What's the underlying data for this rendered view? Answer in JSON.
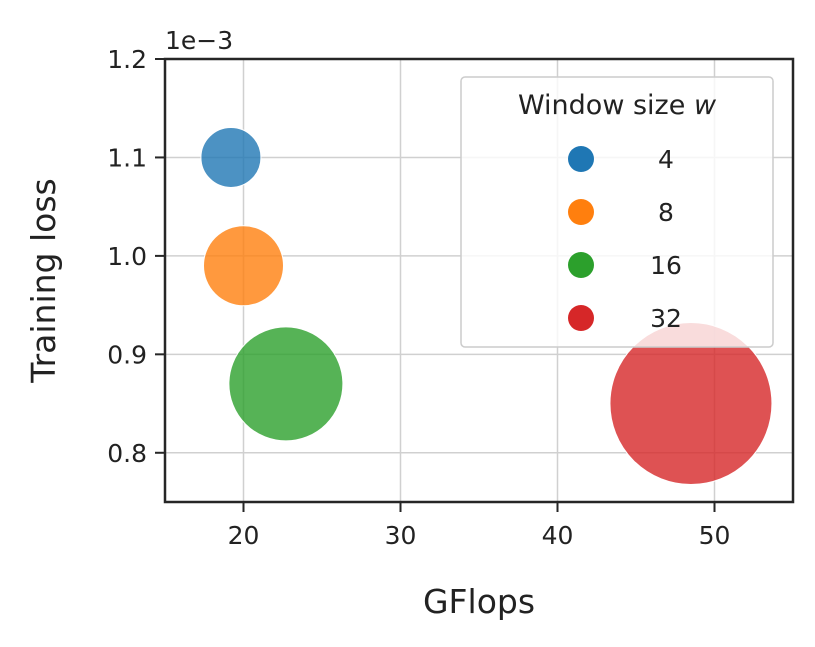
{
  "chart_data": {
    "type": "scatter",
    "xlabel": "GFlops",
    "ylabel": "Training loss",
    "y_offset_label": "1e−3",
    "xlim": [
      15,
      55
    ],
    "ylim": [
      0.75,
      1.2
    ],
    "xticks": [
      20,
      30,
      40,
      50
    ],
    "xtick_labels": [
      "20",
      "30",
      "40",
      "50"
    ],
    "yticks": [
      0.8,
      0.9,
      1.0,
      1.1,
      1.2
    ],
    "ytick_labels": [
      "0.8",
      "0.9",
      "1.0",
      "1.1",
      "1.2"
    ],
    "grid": true,
    "legend": {
      "title_text": "Window size ",
      "title_var": "w",
      "placement": "top-right",
      "entries": [
        {
          "label": "4",
          "color": "#1f77b4"
        },
        {
          "label": "8",
          "color": "#ff7f0e"
        },
        {
          "label": "16",
          "color": "#2ca02c"
        },
        {
          "label": "32",
          "color": "#d62728"
        }
      ]
    },
    "points": [
      {
        "window": "4",
        "x": 19.2,
        "y": 1.1,
        "color": "#1f77b4"
      },
      {
        "window": "8",
        "x": 20.0,
        "y": 0.99,
        "color": "#ff7f0e"
      },
      {
        "window": "16",
        "x": 22.7,
        "y": 0.87,
        "color": "#2ca02c"
      },
      {
        "window": "32",
        "x": 48.5,
        "y": 0.85,
        "color": "#d62728"
      }
    ]
  }
}
